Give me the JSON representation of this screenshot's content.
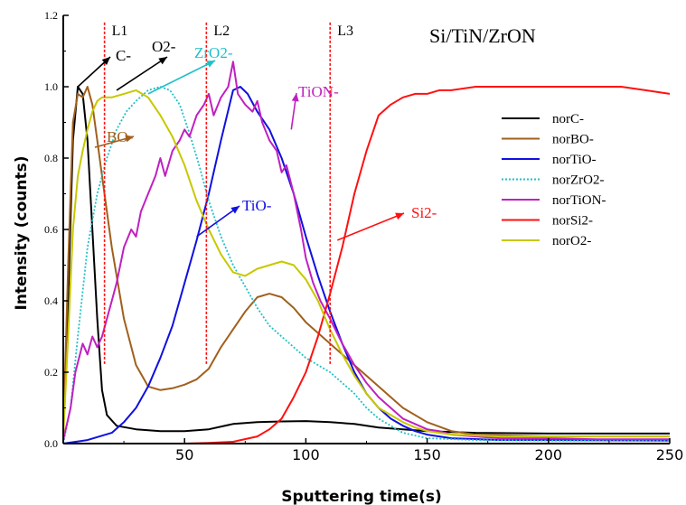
{
  "chart_data": {
    "type": "line",
    "title": "Si/TiN/ZrON",
    "xlabel": "Sputtering time(s)",
    "ylabel": "Intensity (counts)",
    "xlim": [
      0,
      250
    ],
    "ylim": [
      0,
      1.2
    ],
    "xticks": [
      50,
      100,
      150,
      200,
      250
    ],
    "yticks": [
      0.0,
      0.2,
      0.4,
      0.6,
      0.8,
      1.0,
      1.2
    ],
    "xtick_labels": [
      "50",
      "100",
      "150",
      "200",
      "250"
    ],
    "ytick_labels": [
      "0.0",
      "0.2",
      "0.4",
      "0.6",
      "0.8",
      "1.0",
      "1.2"
    ],
    "grid": false,
    "legend_position": "right",
    "series": [
      {
        "name": "norC-",
        "color": "#000000",
        "dash": "solid",
        "points": [
          [
            0,
            0.03
          ],
          [
            2,
            0.4
          ],
          [
            4,
            0.85
          ],
          [
            6,
            1.0
          ],
          [
            8,
            0.98
          ],
          [
            10,
            0.85
          ],
          [
            12,
            0.6
          ],
          [
            14,
            0.35
          ],
          [
            16,
            0.15
          ],
          [
            18,
            0.08
          ],
          [
            22,
            0.05
          ],
          [
            30,
            0.04
          ],
          [
            40,
            0.035
          ],
          [
            50,
            0.035
          ],
          [
            60,
            0.04
          ],
          [
            70,
            0.055
          ],
          [
            80,
            0.06
          ],
          [
            90,
            0.062
          ],
          [
            100,
            0.063
          ],
          [
            110,
            0.06
          ],
          [
            120,
            0.055
          ],
          [
            130,
            0.045
          ],
          [
            140,
            0.04
          ],
          [
            150,
            0.035
          ],
          [
            170,
            0.03
          ],
          [
            200,
            0.028
          ],
          [
            230,
            0.028
          ],
          [
            250,
            0.028
          ]
        ]
      },
      {
        "name": "norBO-",
        "color": "#a0601c",
        "dash": "solid",
        "points": [
          [
            0,
            0.02
          ],
          [
            2,
            0.5
          ],
          [
            4,
            0.9
          ],
          [
            6,
            0.98
          ],
          [
            8,
            0.97
          ],
          [
            10,
            1.0
          ],
          [
            12,
            0.95
          ],
          [
            14,
            0.85
          ],
          [
            16,
            0.75
          ],
          [
            20,
            0.55
          ],
          [
            25,
            0.35
          ],
          [
            30,
            0.22
          ],
          [
            35,
            0.16
          ],
          [
            40,
            0.15
          ],
          [
            45,
            0.155
          ],
          [
            50,
            0.165
          ],
          [
            55,
            0.18
          ],
          [
            60,
            0.21
          ],
          [
            65,
            0.27
          ],
          [
            70,
            0.32
          ],
          [
            75,
            0.37
          ],
          [
            80,
            0.41
          ],
          [
            85,
            0.42
          ],
          [
            90,
            0.41
          ],
          [
            95,
            0.38
          ],
          [
            100,
            0.34
          ],
          [
            110,
            0.28
          ],
          [
            120,
            0.22
          ],
          [
            130,
            0.16
          ],
          [
            140,
            0.1
          ],
          [
            150,
            0.06
          ],
          [
            160,
            0.035
          ],
          [
            170,
            0.025
          ],
          [
            200,
            0.02
          ],
          [
            250,
            0.02
          ]
        ]
      },
      {
        "name": "norTiO-",
        "color": "#1010e0",
        "dash": "solid",
        "points": [
          [
            0,
            0.0
          ],
          [
            10,
            0.01
          ],
          [
            20,
            0.03
          ],
          [
            25,
            0.06
          ],
          [
            30,
            0.1
          ],
          [
            35,
            0.16
          ],
          [
            40,
            0.24
          ],
          [
            45,
            0.33
          ],
          [
            50,
            0.45
          ],
          [
            55,
            0.57
          ],
          [
            60,
            0.7
          ],
          [
            65,
            0.85
          ],
          [
            70,
            0.99
          ],
          [
            73,
            1.0
          ],
          [
            76,
            0.98
          ],
          [
            80,
            0.93
          ],
          [
            85,
            0.88
          ],
          [
            90,
            0.8
          ],
          [
            95,
            0.7
          ],
          [
            100,
            0.58
          ],
          [
            105,
            0.47
          ],
          [
            110,
            0.37
          ],
          [
            115,
            0.28
          ],
          [
            120,
            0.2
          ],
          [
            125,
            0.14
          ],
          [
            130,
            0.1
          ],
          [
            135,
            0.07
          ],
          [
            140,
            0.05
          ],
          [
            145,
            0.035
          ],
          [
            150,
            0.025
          ],
          [
            160,
            0.015
          ],
          [
            180,
            0.01
          ],
          [
            200,
            0.01
          ],
          [
            250,
            0.008
          ]
        ]
      },
      {
        "name": "norZrO2-",
        "color": "#20c0c8",
        "dash": "dotted",
        "points": [
          [
            0,
            0.0
          ],
          [
            3,
            0.1
          ],
          [
            6,
            0.3
          ],
          [
            10,
            0.55
          ],
          [
            14,
            0.7
          ],
          [
            18,
            0.8
          ],
          [
            22,
            0.88
          ],
          [
            26,
            0.93
          ],
          [
            30,
            0.96
          ],
          [
            35,
            0.99
          ],
          [
            40,
            1.0
          ],
          [
            44,
            0.99
          ],
          [
            48,
            0.95
          ],
          [
            52,
            0.87
          ],
          [
            56,
            0.78
          ],
          [
            60,
            0.68
          ],
          [
            65,
            0.58
          ],
          [
            70,
            0.5
          ],
          [
            75,
            0.44
          ],
          [
            80,
            0.38
          ],
          [
            85,
            0.33
          ],
          [
            90,
            0.3
          ],
          [
            95,
            0.27
          ],
          [
            100,
            0.24
          ],
          [
            105,
            0.22
          ],
          [
            110,
            0.2
          ],
          [
            115,
            0.17
          ],
          [
            120,
            0.14
          ],
          [
            125,
            0.1
          ],
          [
            130,
            0.07
          ],
          [
            135,
            0.05
          ],
          [
            140,
            0.03
          ],
          [
            150,
            0.015
          ],
          [
            170,
            0.01
          ],
          [
            200,
            0.008
          ],
          [
            250,
            0.008
          ]
        ]
      },
      {
        "name": "norTiON-",
        "color": "#c020c0",
        "dash": "solid",
        "points": [
          [
            0,
            0.01
          ],
          [
            3,
            0.1
          ],
          [
            5,
            0.2
          ],
          [
            8,
            0.28
          ],
          [
            10,
            0.25
          ],
          [
            12,
            0.3
          ],
          [
            14,
            0.27
          ],
          [
            16,
            0.3
          ],
          [
            18,
            0.35
          ],
          [
            20,
            0.4
          ],
          [
            22,
            0.45
          ],
          [
            25,
            0.55
          ],
          [
            28,
            0.6
          ],
          [
            30,
            0.58
          ],
          [
            32,
            0.65
          ],
          [
            35,
            0.7
          ],
          [
            38,
            0.75
          ],
          [
            40,
            0.8
          ],
          [
            42,
            0.75
          ],
          [
            45,
            0.82
          ],
          [
            48,
            0.85
          ],
          [
            50,
            0.88
          ],
          [
            52,
            0.86
          ],
          [
            55,
            0.92
          ],
          [
            58,
            0.95
          ],
          [
            60,
            0.98
          ],
          [
            62,
            0.92
          ],
          [
            65,
            0.97
          ],
          [
            68,
            1.0
          ],
          [
            70,
            1.07
          ],
          [
            72,
            0.98
          ],
          [
            75,
            0.95
          ],
          [
            78,
            0.93
          ],
          [
            80,
            0.96
          ],
          [
            82,
            0.9
          ],
          [
            85,
            0.85
          ],
          [
            88,
            0.82
          ],
          [
            90,
            0.76
          ],
          [
            92,
            0.78
          ],
          [
            95,
            0.7
          ],
          [
            98,
            0.6
          ],
          [
            100,
            0.52
          ],
          [
            103,
            0.45
          ],
          [
            106,
            0.4
          ],
          [
            110,
            0.35
          ],
          [
            115,
            0.28
          ],
          [
            120,
            0.22
          ],
          [
            125,
            0.17
          ],
          [
            130,
            0.13
          ],
          [
            135,
            0.1
          ],
          [
            140,
            0.07
          ],
          [
            145,
            0.055
          ],
          [
            150,
            0.04
          ],
          [
            155,
            0.035
          ],
          [
            160,
            0.025
          ],
          [
            170,
            0.02
          ],
          [
            180,
            0.015
          ],
          [
            200,
            0.015
          ],
          [
            220,
            0.012
          ],
          [
            250,
            0.012
          ]
        ]
      },
      {
        "name": "norSi2-",
        "color": "#ff1010",
        "dash": "solid",
        "points": [
          [
            0,
            0.0
          ],
          [
            50,
            0.0
          ],
          [
            60,
            0.002
          ],
          [
            70,
            0.005
          ],
          [
            80,
            0.02
          ],
          [
            85,
            0.04
          ],
          [
            90,
            0.07
          ],
          [
            95,
            0.13
          ],
          [
            100,
            0.2
          ],
          [
            105,
            0.3
          ],
          [
            110,
            0.42
          ],
          [
            115,
            0.55
          ],
          [
            120,
            0.7
          ],
          [
            125,
            0.82
          ],
          [
            130,
            0.92
          ],
          [
            135,
            0.95
          ],
          [
            140,
            0.97
          ],
          [
            145,
            0.98
          ],
          [
            150,
            0.98
          ],
          [
            155,
            0.99
          ],
          [
            160,
            0.99
          ],
          [
            170,
            1.0
          ],
          [
            180,
            1.0
          ],
          [
            190,
            1.0
          ],
          [
            200,
            1.0
          ],
          [
            210,
            1.0
          ],
          [
            220,
            1.0
          ],
          [
            230,
            1.0
          ],
          [
            240,
            0.99
          ],
          [
            250,
            0.98
          ]
        ]
      },
      {
        "name": "norO2-",
        "color": "#c8c800",
        "dash": "solid",
        "points": [
          [
            0,
            0.02
          ],
          [
            2,
            0.3
          ],
          [
            4,
            0.6
          ],
          [
            6,
            0.75
          ],
          [
            8,
            0.82
          ],
          [
            10,
            0.88
          ],
          [
            12,
            0.93
          ],
          [
            14,
            0.96
          ],
          [
            16,
            0.97
          ],
          [
            20,
            0.97
          ],
          [
            25,
            0.98
          ],
          [
            30,
            0.99
          ],
          [
            35,
            0.97
          ],
          [
            40,
            0.92
          ],
          [
            45,
            0.86
          ],
          [
            50,
            0.78
          ],
          [
            55,
            0.68
          ],
          [
            60,
            0.6
          ],
          [
            65,
            0.53
          ],
          [
            70,
            0.48
          ],
          [
            75,
            0.47
          ],
          [
            80,
            0.49
          ],
          [
            85,
            0.5
          ],
          [
            90,
            0.51
          ],
          [
            95,
            0.5
          ],
          [
            100,
            0.46
          ],
          [
            105,
            0.4
          ],
          [
            110,
            0.32
          ],
          [
            115,
            0.25
          ],
          [
            120,
            0.19
          ],
          [
            125,
            0.14
          ],
          [
            130,
            0.1
          ],
          [
            135,
            0.08
          ],
          [
            140,
            0.06
          ],
          [
            145,
            0.045
          ],
          [
            150,
            0.035
          ],
          [
            160,
            0.025
          ],
          [
            180,
            0.02
          ],
          [
            200,
            0.02
          ],
          [
            250,
            0.02
          ]
        ]
      }
    ],
    "vertical_lines": [
      {
        "label": "L1",
        "x": 17,
        "color": "#ff1010"
      },
      {
        "label": "L2",
        "x": 59,
        "color": "#ff1010"
      },
      {
        "label": "L3",
        "x": 110,
        "color": "#ff1010"
      }
    ],
    "annotations": [
      {
        "text": "C-",
        "color": "#000000",
        "tip": [
          6,
          1.0
        ]
      },
      {
        "text": "O2-",
        "color": "#000000",
        "tip": [
          22,
          0.99
        ]
      },
      {
        "text": "ZrO2-",
        "color": "#20c0c8",
        "tip": [
          35,
          0.98
        ]
      },
      {
        "text": "BO-",
        "color": "#a0601c",
        "tip": [
          13,
          0.83
        ]
      },
      {
        "text": "TiON-",
        "color": "#c020c0",
        "tip": [
          94,
          0.88
        ]
      },
      {
        "text": "TiO-",
        "color": "#1010e0",
        "tip": [
          55,
          0.58
        ]
      },
      {
        "text": "Si2-",
        "color": "#ff1010",
        "tip": [
          113,
          0.57
        ]
      }
    ]
  }
}
